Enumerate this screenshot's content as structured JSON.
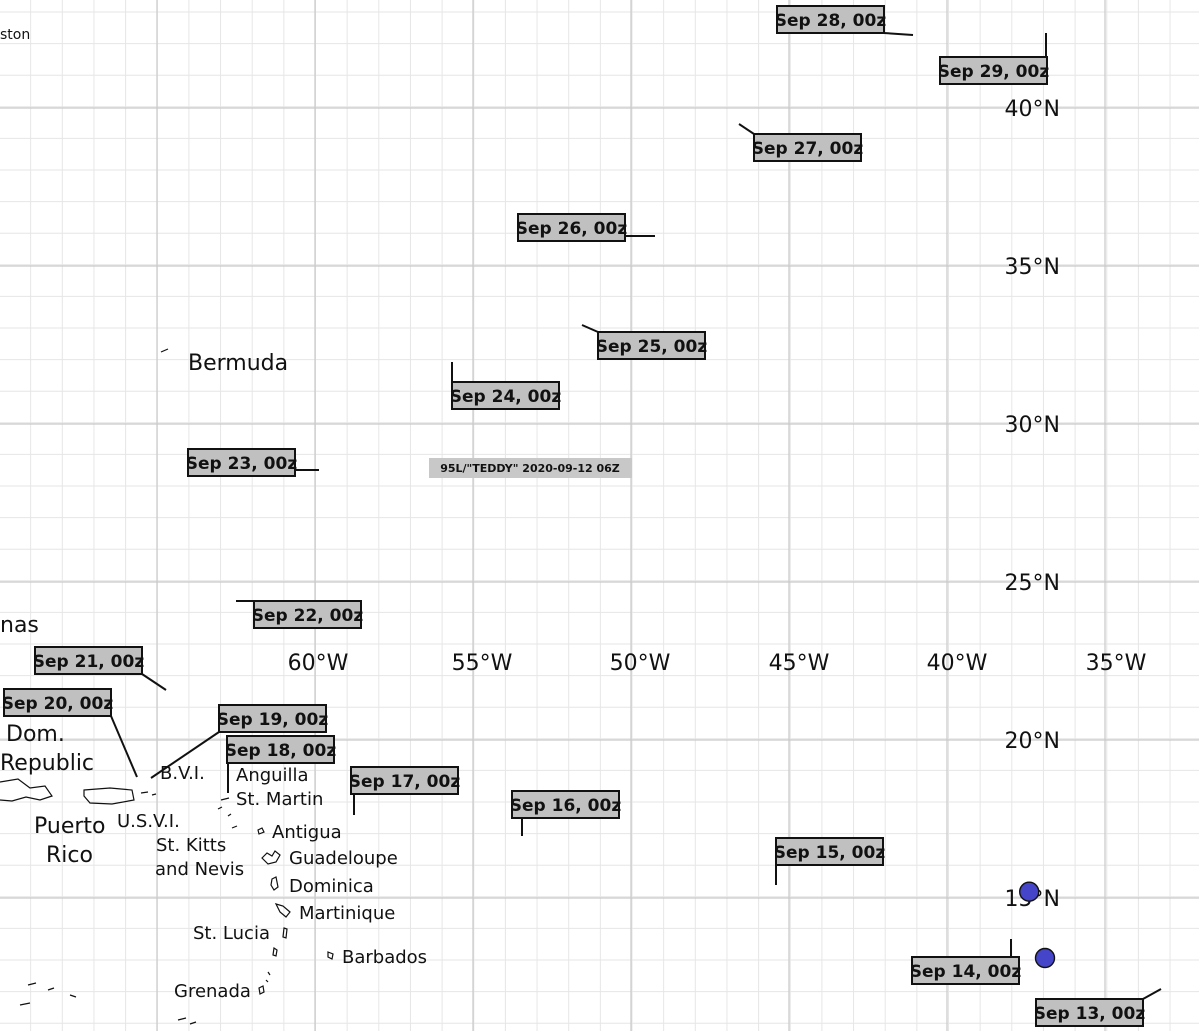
{
  "title": "95L/\"TEDDY\" 2020-09-12 06Z",
  "lon_labels": [
    "60°W",
    "55°W",
    "50°W",
    "45°W",
    "40°W",
    "35°W"
  ],
  "lat_labels": [
    "40°N",
    "35°N",
    "30°N",
    "25°N",
    "20°N",
    "15°N"
  ],
  "places": [
    "Bermuda",
    "nas",
    "Dom.",
    "Republic",
    "Puerto",
    "Rico",
    "U.S.V.I.",
    "B.V.I.",
    "Anguilla",
    "St. Martin",
    "Antigua",
    "Guadeloupe",
    "St. Kitts",
    "and Nevis",
    "Dominica",
    "Martinique",
    "St. Lucia",
    "Barbados",
    "Grenada",
    "ston"
  ],
  "date_labels": [
    "Sep 13, 00z",
    "Sep 14, 00z",
    "Sep 15, 00z",
    "Sep 16, 00z",
    "Sep 17, 00z",
    "Sep 18, 00z",
    "Sep 19, 00z",
    "Sep 20, 00z",
    "Sep 21, 00z",
    "Sep 22, 00z",
    "Sep 23, 00z",
    "Sep 24, 00z",
    "Sep 25, 00z",
    "Sep 26, 00z",
    "Sep 27, 00z",
    "Sep 28, 00z",
    "Sep 29, 00z"
  ],
  "colors": {
    "grid": "#c9c9c9",
    "minor_grid": "#e6e6e6",
    "label_box": "#c0c0c0",
    "intensity": {
      "low": "#f5e6b3",
      "depression": "#a6d8ea",
      "storm": "#1aa3e0",
      "extratropical": "#4545c9",
      "cat1": "#fde92b",
      "cat2": "#fbbf2a",
      "cat3": "#f68a2c",
      "cat4": "#ec5a21",
      "cat5": "#e2201c"
    }
  },
  "track": [
    {
      "lon": -37.4,
      "lat": 15.2,
      "type": "extratropical"
    },
    {
      "lon": -36.9,
      "lat": 13.1,
      "type": "extratropical"
    }
  ]
}
